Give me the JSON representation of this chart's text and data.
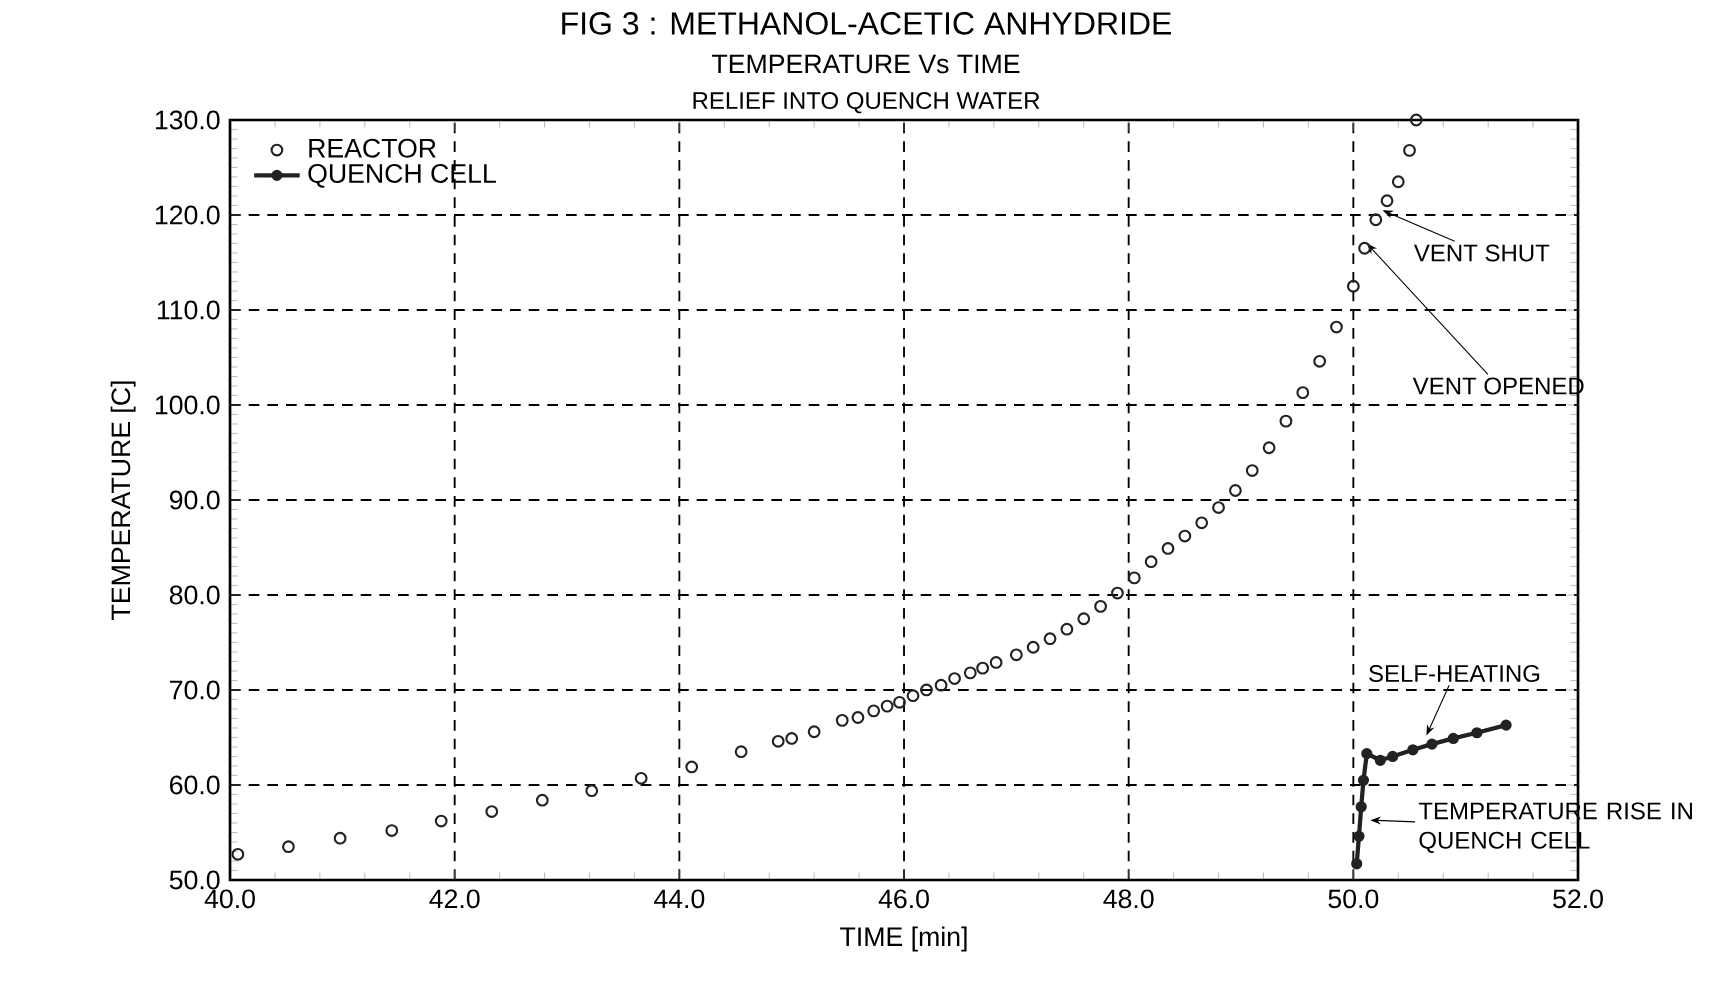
{
  "chart_data": {
    "type": "scatter",
    "title": "FIG 3 : METHANOL-ACETIC ANHYDRIDE",
    "subtitle": "TEMPERATURE Vs TIME",
    "xlabel": "TIME [min]",
    "ylabel": "TEMPERATURE [C]",
    "xlim": [
      40,
      52
    ],
    "ylim": [
      50,
      130
    ],
    "xticks": [
      {
        "value": 40,
        "label": "40.0"
      },
      {
        "value": 42,
        "label": "42.0"
      },
      {
        "value": 44,
        "label": "44.0"
      },
      {
        "value": 46,
        "label": "46.0"
      },
      {
        "value": 48,
        "label": "48.0"
      },
      {
        "value": 50,
        "label": "50.0"
      },
      {
        "value": 52,
        "label": "52.0"
      }
    ],
    "yticks": [
      {
        "value": 50,
        "label": "50.0"
      },
      {
        "value": 60,
        "label": "60.0"
      },
      {
        "value": 70,
        "label": "70.0"
      },
      {
        "value": 80,
        "label": "80.0"
      },
      {
        "value": 90,
        "label": "90.0"
      },
      {
        "value": 100,
        "label": "100.0"
      },
      {
        "value": 110,
        "label": "110.0"
      },
      {
        "value": 120,
        "label": "120.0"
      },
      {
        "value": 130,
        "label": "130.0"
      }
    ],
    "grid": true,
    "legend": "top left",
    "series": [
      {
        "name": "REACTOR",
        "marker": "circle",
        "color": "#222222",
        "x": [
          40.07,
          40.52,
          40.98,
          41.44,
          41.88,
          42.33,
          42.78,
          43.22,
          43.66,
          44.11,
          44.55,
          44.88,
          45.0,
          45.2,
          45.45,
          45.59,
          45.73,
          45.85,
          45.96,
          46.08,
          46.2,
          46.33,
          46.45,
          46.59,
          46.7,
          46.82,
          47.0,
          47.15,
          47.3,
          47.45,
          47.6,
          47.75,
          47.9,
          48.05,
          48.2,
          48.35,
          48.5,
          48.65,
          48.8,
          48.95,
          49.1,
          49.25,
          49.4,
          49.55,
          49.7,
          49.85,
          50.0,
          50.1,
          50.2,
          50.3,
          50.4,
          50.5,
          50.56
        ],
        "values": [
          52.7,
          53.5,
          54.4,
          55.2,
          56.2,
          57.2,
          58.4,
          59.4,
          60.7,
          61.9,
          63.5,
          64.6,
          64.9,
          65.6,
          66.8,
          67.1,
          67.8,
          68.3,
          68.7,
          69.4,
          70.0,
          70.5,
          71.2,
          71.8,
          72.3,
          72.9,
          73.7,
          74.5,
          75.4,
          76.4,
          77.5,
          78.8,
          80.2,
          81.8,
          83.5,
          84.9,
          86.2,
          87.6,
          89.2,
          91.0,
          93.1,
          95.5,
          98.3,
          101.3,
          104.6,
          108.2,
          112.5,
          116.5,
          119.5,
          121.5,
          123.5,
          126.8,
          130.0
        ]
      },
      {
        "name": "QUENCH CELL",
        "type": "line",
        "marker": "circle",
        "color": "#222222",
        "x": [
          50.03,
          50.05,
          50.07,
          50.09,
          50.12,
          50.24,
          50.35,
          50.53,
          50.7,
          50.89,
          51.1,
          51.36
        ],
        "values": [
          51.7,
          54.6,
          57.7,
          60.5,
          63.3,
          62.6,
          63.0,
          63.7,
          64.3,
          64.9,
          65.5,
          66.3
        ]
      }
    ],
    "annotations": [
      "RELIEF INTO QUENCH WATER",
      {
        "text": "VENT SHUT",
        "x": 50.26,
        "y": 120.5
      },
      {
        "text": "VENT OPENED",
        "x": 50.12,
        "y": 117.0
      },
      {
        "text": "SELF-HEATING",
        "x": 50.65,
        "y": 65.2
      },
      {
        "text": "TEMPERATURE RISE IN QUENCH CELL",
        "x": 50.15,
        "y": 56.3
      }
    ]
  }
}
